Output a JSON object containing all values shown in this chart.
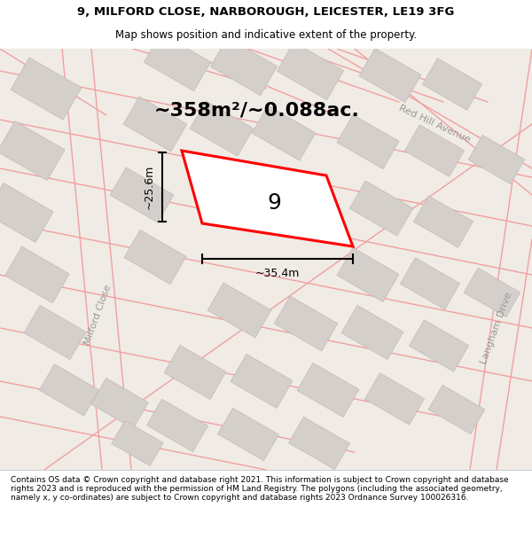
{
  "title_line1": "9, MILFORD CLOSE, NARBOROUGH, LEICESTER, LE19 3FG",
  "title_line2": "Map shows position and indicative extent of the property.",
  "footer_text": "Contains OS data © Crown copyright and database right 2021. This information is subject to Crown copyright and database rights 2023 and is reproduced with the permission of HM Land Registry. The polygons (including the associated geometry, namely x, y co-ordinates) are subject to Crown copyright and database rights 2023 Ordnance Survey 100026316.",
  "area_text": "~358m²/~0.088ac.",
  "width_label": "~35.4m",
  "height_label": "~25.6m",
  "plot_number": "9",
  "map_bg": "#f0ebe5",
  "building_color": "#d4cfca",
  "building_edge": "#c0bbb6",
  "road_line_color": "#f0a0a0",
  "highlight_color": "#ff0000",
  "title_bg": "#ffffff",
  "footer_bg": "#ffffff",
  "title_fontsize": 9.5,
  "subtitle_fontsize": 8.5,
  "footer_fontsize": 6.5,
  "area_fontsize": 16,
  "plot_num_fontsize": 18,
  "street_fontsize": 8
}
